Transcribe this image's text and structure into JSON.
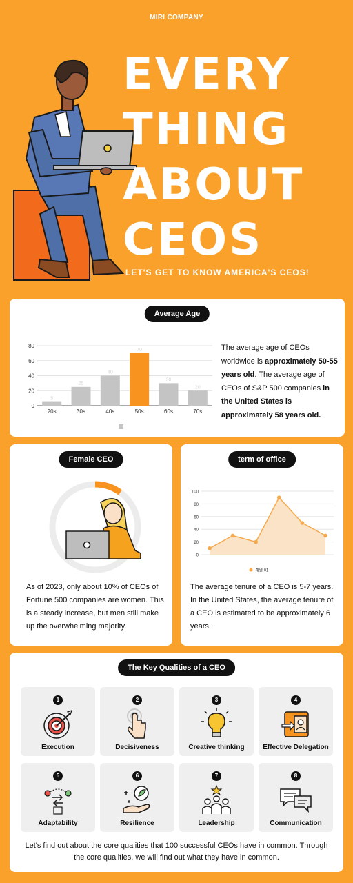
{
  "brand": "MIRI COMPANY",
  "hero": {
    "lines": [
      "EVERY",
      "THING",
      "ABOUT",
      "CEOS"
    ],
    "subtitle": "LET'S GET TO KNOW AMERICA'S CEOS!"
  },
  "age": {
    "heading": "Average Age",
    "text_1": "The average age of CEOs worldwide is ",
    "text_2": "approximately 50-55 years old",
    "text_3": ". The average age of CEOs of S&P 500 companies ",
    "text_4": "in the United States is approximately 58 years old."
  },
  "female": {
    "heading": "Female CEO",
    "percent": 10,
    "text": "As of 2023, only about 10% of CEOs of Fortune 500 companies are women. This is a steady increase, but men still make up the overwhelming majority."
  },
  "term": {
    "heading": "term of office",
    "text": "The average tenure of a CEO is 5-7 years. In the United States, the average tenure of a CEO is estimated to be approximately 6 years."
  },
  "chart_data": [
    {
      "type": "bar",
      "categories": [
        "20s",
        "30s",
        "40s",
        "50s",
        "60s",
        "70s"
      ],
      "values": [
        5,
        25,
        40,
        70,
        30,
        20
      ],
      "ylim": [
        0,
        80
      ],
      "yticks": [
        0,
        20,
        40,
        60,
        80
      ],
      "highlight_index": 3,
      "colors": {
        "bar": "#C4C4C4",
        "highlight": "#F7931E"
      }
    },
    {
      "type": "area",
      "x": [
        1,
        2,
        3,
        4,
        5,
        6
      ],
      "values": [
        10,
        30,
        20,
        90,
        50,
        30
      ],
      "ylim": [
        0,
        100
      ],
      "yticks": [
        0,
        20,
        40,
        60,
        80,
        100
      ],
      "series_name": "계열 01",
      "colors": {
        "line": "#F5A94A",
        "fill": "#FBE3C8"
      }
    }
  ],
  "qualities": {
    "heading": "The Key Qualities of a CEO",
    "items": [
      {
        "num": "1",
        "label": "Execution",
        "icon": "target-icon"
      },
      {
        "num": "2",
        "label": "Decisiveness",
        "icon": "pointer-hand-icon"
      },
      {
        "num": "3",
        "label": "Creative thinking",
        "icon": "lightbulb-icon"
      },
      {
        "num": "4",
        "label": "Effective Delegation",
        "icon": "delegation-icon"
      },
      {
        "num": "5",
        "label": "Adaptability",
        "icon": "adaptability-icon"
      },
      {
        "num": "6",
        "label": "Resilience",
        "icon": "plant-hand-icon"
      },
      {
        "num": "7",
        "label": "Leadership",
        "icon": "team-icon"
      },
      {
        "num": "8",
        "label": "Communication",
        "icon": "chat-bubbles-icon"
      }
    ],
    "footer": "Let's find out about the core qualities that 100 successful CEOs have in common. Through the core qualities, we will find out what they have in common."
  }
}
